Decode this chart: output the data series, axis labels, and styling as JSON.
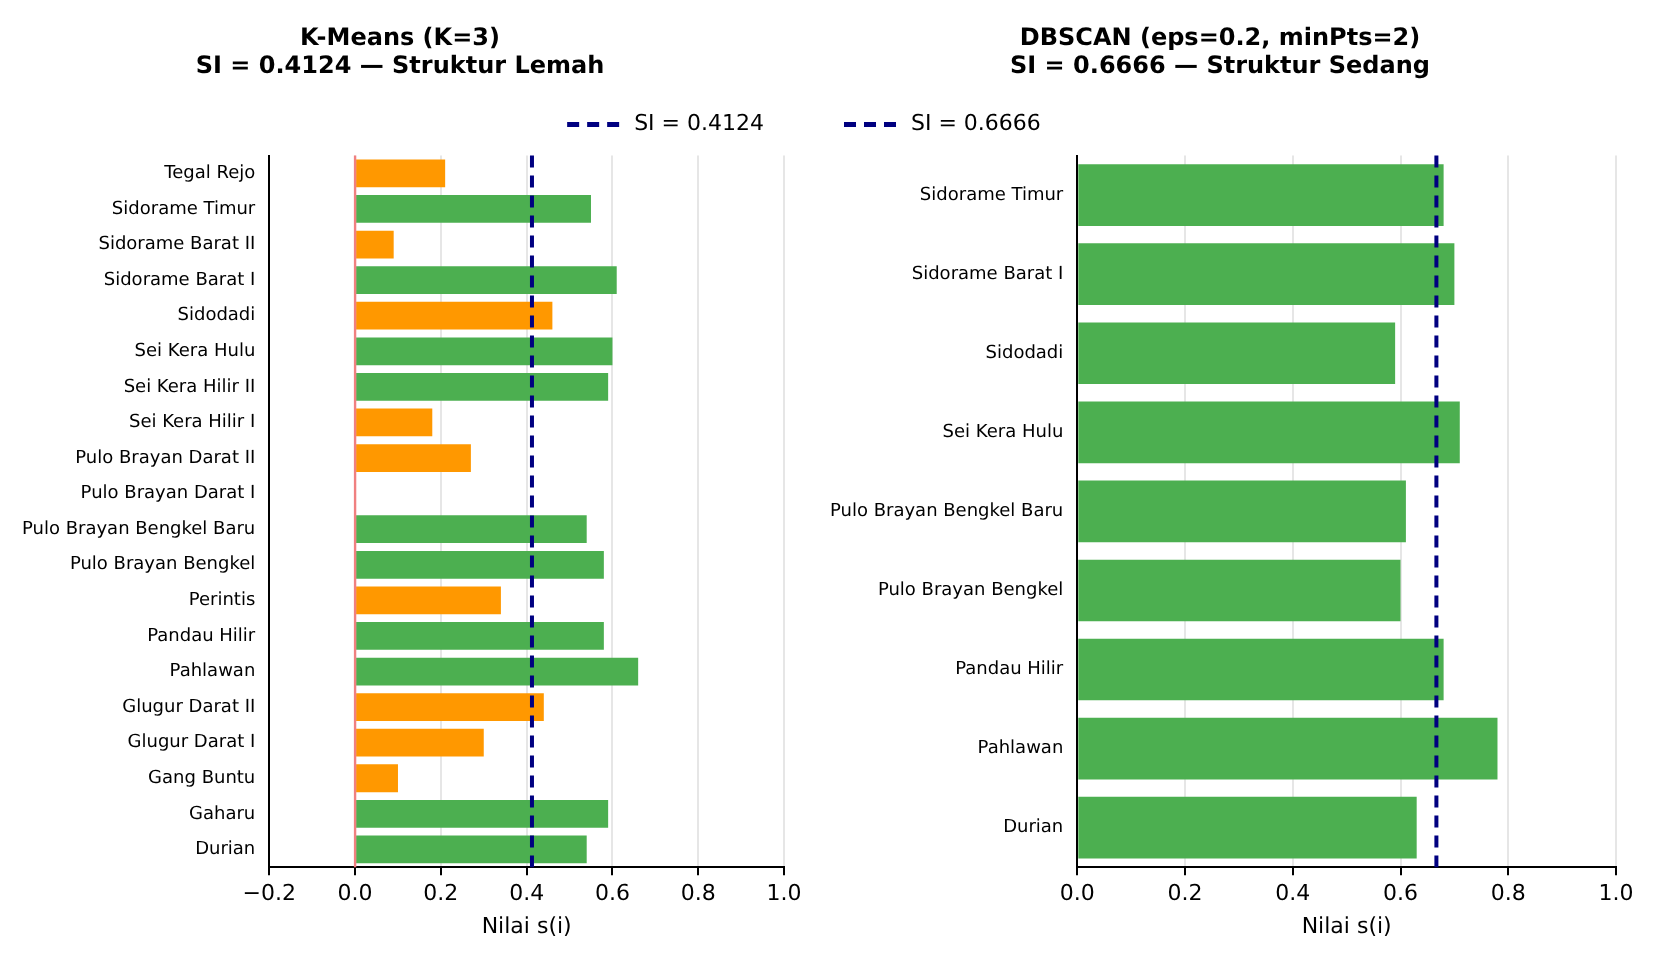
{
  "chart_data": [
    {
      "type": "bar",
      "orientation": "horizontal",
      "title": "K-Means (K=3)",
      "subtitle": "SI = 0.4124 — Struktur Lemah",
      "xlabel": "Nilai s(i)",
      "categories": [
        "Tegal Rejo",
        "Sidorame Timur",
        "Sidorame Barat II",
        "Sidorame Barat I",
        "Sidodadi",
        "Sei Kera Hulu",
        "Sei Kera Hilir II",
        "Sei Kera Hilir I",
        "Pulo Brayan Darat II",
        "Pulo Brayan Darat I",
        "Pulo Brayan Bengkel Baru",
        "Pulo Brayan Bengkel",
        "Perintis",
        "Pandau Hilir",
        "Pahlawan",
        "Glugur Darat II",
        "Glugur Darat I",
        "Gang Buntu",
        "Gaharu",
        "Durian"
      ],
      "values": [
        0.21,
        0.55,
        0.09,
        0.61,
        0.46,
        0.6,
        0.59,
        0.18,
        0.27,
        0,
        0.54,
        0.58,
        0.34,
        0.58,
        0.66,
        0.44,
        0.3,
        0.1,
        0.59,
        0.54
      ],
      "colors": [
        "#ff9800",
        "#4caf50",
        "#ff9800",
        "#4caf50",
        "#ff9800",
        "#4caf50",
        "#4caf50",
        "#ff9800",
        "#ff9800",
        "#4caf50",
        "#4caf50",
        "#4caf50",
        "#ff9800",
        "#4caf50",
        "#4caf50",
        "#ff9800",
        "#ff9800",
        "#ff9800",
        "#4caf50",
        "#4caf50"
      ],
      "xlim": [
        -0.2,
        1.0
      ],
      "xticks": [
        {
          "value": -0.2,
          "label": "−0.2"
        },
        {
          "value": 0,
          "label": "0.0"
        },
        {
          "value": 0.2,
          "label": "0.2"
        },
        {
          "value": 0.4,
          "label": "0.4"
        },
        {
          "value": 0.6,
          "label": "0.6"
        },
        {
          "value": 0.8,
          "label": "0.8"
        },
        {
          "value": 1.0,
          "label": "1.0"
        }
      ],
      "grid": "x",
      "legend": "top right",
      "ref_lines": [
        {
          "axis": "x",
          "value": 0,
          "color": "#f08080",
          "line_style": "solid"
        },
        {
          "axis": "x",
          "value": 0.4124,
          "label": "SI = 0.4124",
          "color": "#000080",
          "line_style": "dashed"
        }
      ]
    },
    {
      "type": "bar",
      "orientation": "horizontal",
      "title": "DBSCAN (eps=0.2, minPts=2)",
      "subtitle": "SI = 0.6666 — Struktur Sedang",
      "xlabel": "Nilai s(i)",
      "categories": [
        "Sidorame Timur",
        "Sidorame Barat I",
        "Sidodadi",
        "Sei Kera Hulu",
        "Pulo Brayan Bengkel Baru",
        "Pulo Brayan Bengkel",
        "Pandau Hilir",
        "Pahlawan",
        "Durian"
      ],
      "values": [
        0.68,
        0.7,
        0.59,
        0.71,
        0.61,
        0.6,
        0.68,
        0.78,
        0.63
      ],
      "colors": [
        "#4caf50",
        "#4caf50",
        "#4caf50",
        "#4caf50",
        "#4caf50",
        "#4caf50",
        "#4caf50",
        "#4caf50",
        "#4caf50"
      ],
      "xlim": [
        0,
        1.0
      ],
      "xticks": [
        {
          "value": 0,
          "label": "0.0"
        },
        {
          "value": 0.2,
          "label": "0.2"
        },
        {
          "value": 0.4,
          "label": "0.4"
        },
        {
          "value": 0.6,
          "label": "0.6"
        },
        {
          "value": 0.8,
          "label": "0.8"
        },
        {
          "value": 1.0,
          "label": "1.0"
        }
      ],
      "grid": "x",
      "legend": "top left",
      "ref_lines": [
        {
          "axis": "x",
          "value": 0.6666,
          "label": "SI = 0.6666",
          "color": "#000080",
          "line_style": "dashed"
        }
      ]
    }
  ]
}
